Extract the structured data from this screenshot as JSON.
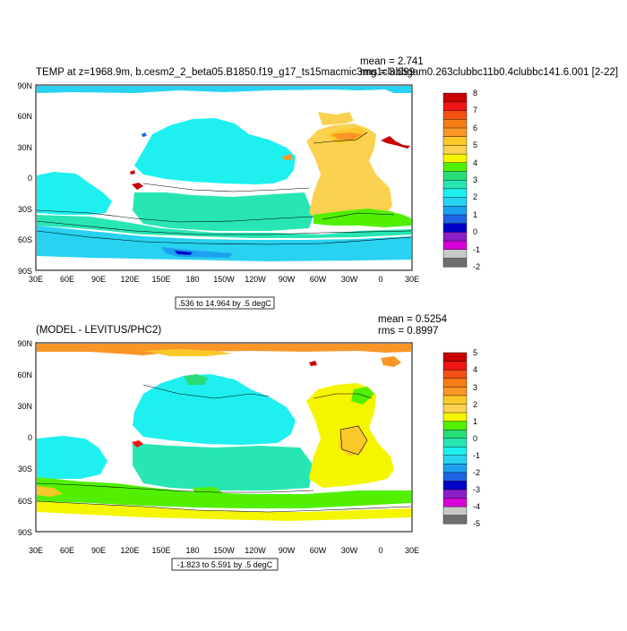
{
  "panel_top": {
    "title": "TEMP at z=1968.9m, b.cesm2_2_beta05.B1850.f19_g17_ts15macmic3mg1clubbgam0.263clubbc11b0.4clubbc141.6.001 [2-22]",
    "mean": "mean = 2.741",
    "rms": "rms = 3.099",
    "range_label": ".536 to 14.964 by .5 degC",
    "lat_labels": [
      "90N",
      "60N",
      "30N",
      "0",
      "30S",
      "60S",
      "90S"
    ],
    "lon_labels": [
      "30E",
      "60E",
      "90E",
      "120E",
      "150E",
      "180",
      "150W",
      "120W",
      "90W",
      "60W",
      "30W",
      "0",
      "30E"
    ],
    "colorbar_labels": [
      "8",
      "7",
      "6",
      "5",
      "4",
      "3",
      "2",
      "1",
      "0",
      "-1",
      "-2"
    ],
    "colors": [
      "#6e6e6e",
      "#c8c8c8",
      "#d800d8",
      "#8a1ec8",
      "#0000c8",
      "#1e64e6",
      "#1ea0f0",
      "#28d2f0",
      "#1ef0f0",
      "#28e6b4",
      "#28dc78",
      "#50f000",
      "#f5f500",
      "#fad250",
      "#fac828",
      "#fa9628",
      "#f57d14",
      "#f55014",
      "#f01414",
      "#c80000"
    ]
  },
  "panel_bottom": {
    "title": "(MODEL - LEVITUS/PHC2)",
    "mean": "mean = 0.5254",
    "rms": "rms = 0.8997",
    "range_label": "-1.823 to 5.591 by .5 degC",
    "lat_labels": [
      "90N",
      "60N",
      "30N",
      "0",
      "30S",
      "60S",
      "90S"
    ],
    "lon_labels": [
      "30E",
      "60E",
      "90E",
      "120E",
      "150E",
      "180",
      "150W",
      "120W",
      "90W",
      "60W",
      "30W",
      "0",
      "30E"
    ],
    "colorbar_labels": [
      "5",
      "4",
      "3",
      "2",
      "1",
      "0",
      "-1",
      "-2",
      "-3",
      "-4",
      "-5"
    ],
    "colors": [
      "#6e6e6e",
      "#c8c8c8",
      "#d800d8",
      "#8a1ec8",
      "#0000c8",
      "#1e64e6",
      "#1ea0f0",
      "#28d2f0",
      "#1ef0f0",
      "#28e6b4",
      "#28dc78",
      "#50f000",
      "#f5f500",
      "#fad250",
      "#fac828",
      "#fa9628",
      "#f57d14",
      "#f55014",
      "#f01414",
      "#c80000"
    ]
  }
}
